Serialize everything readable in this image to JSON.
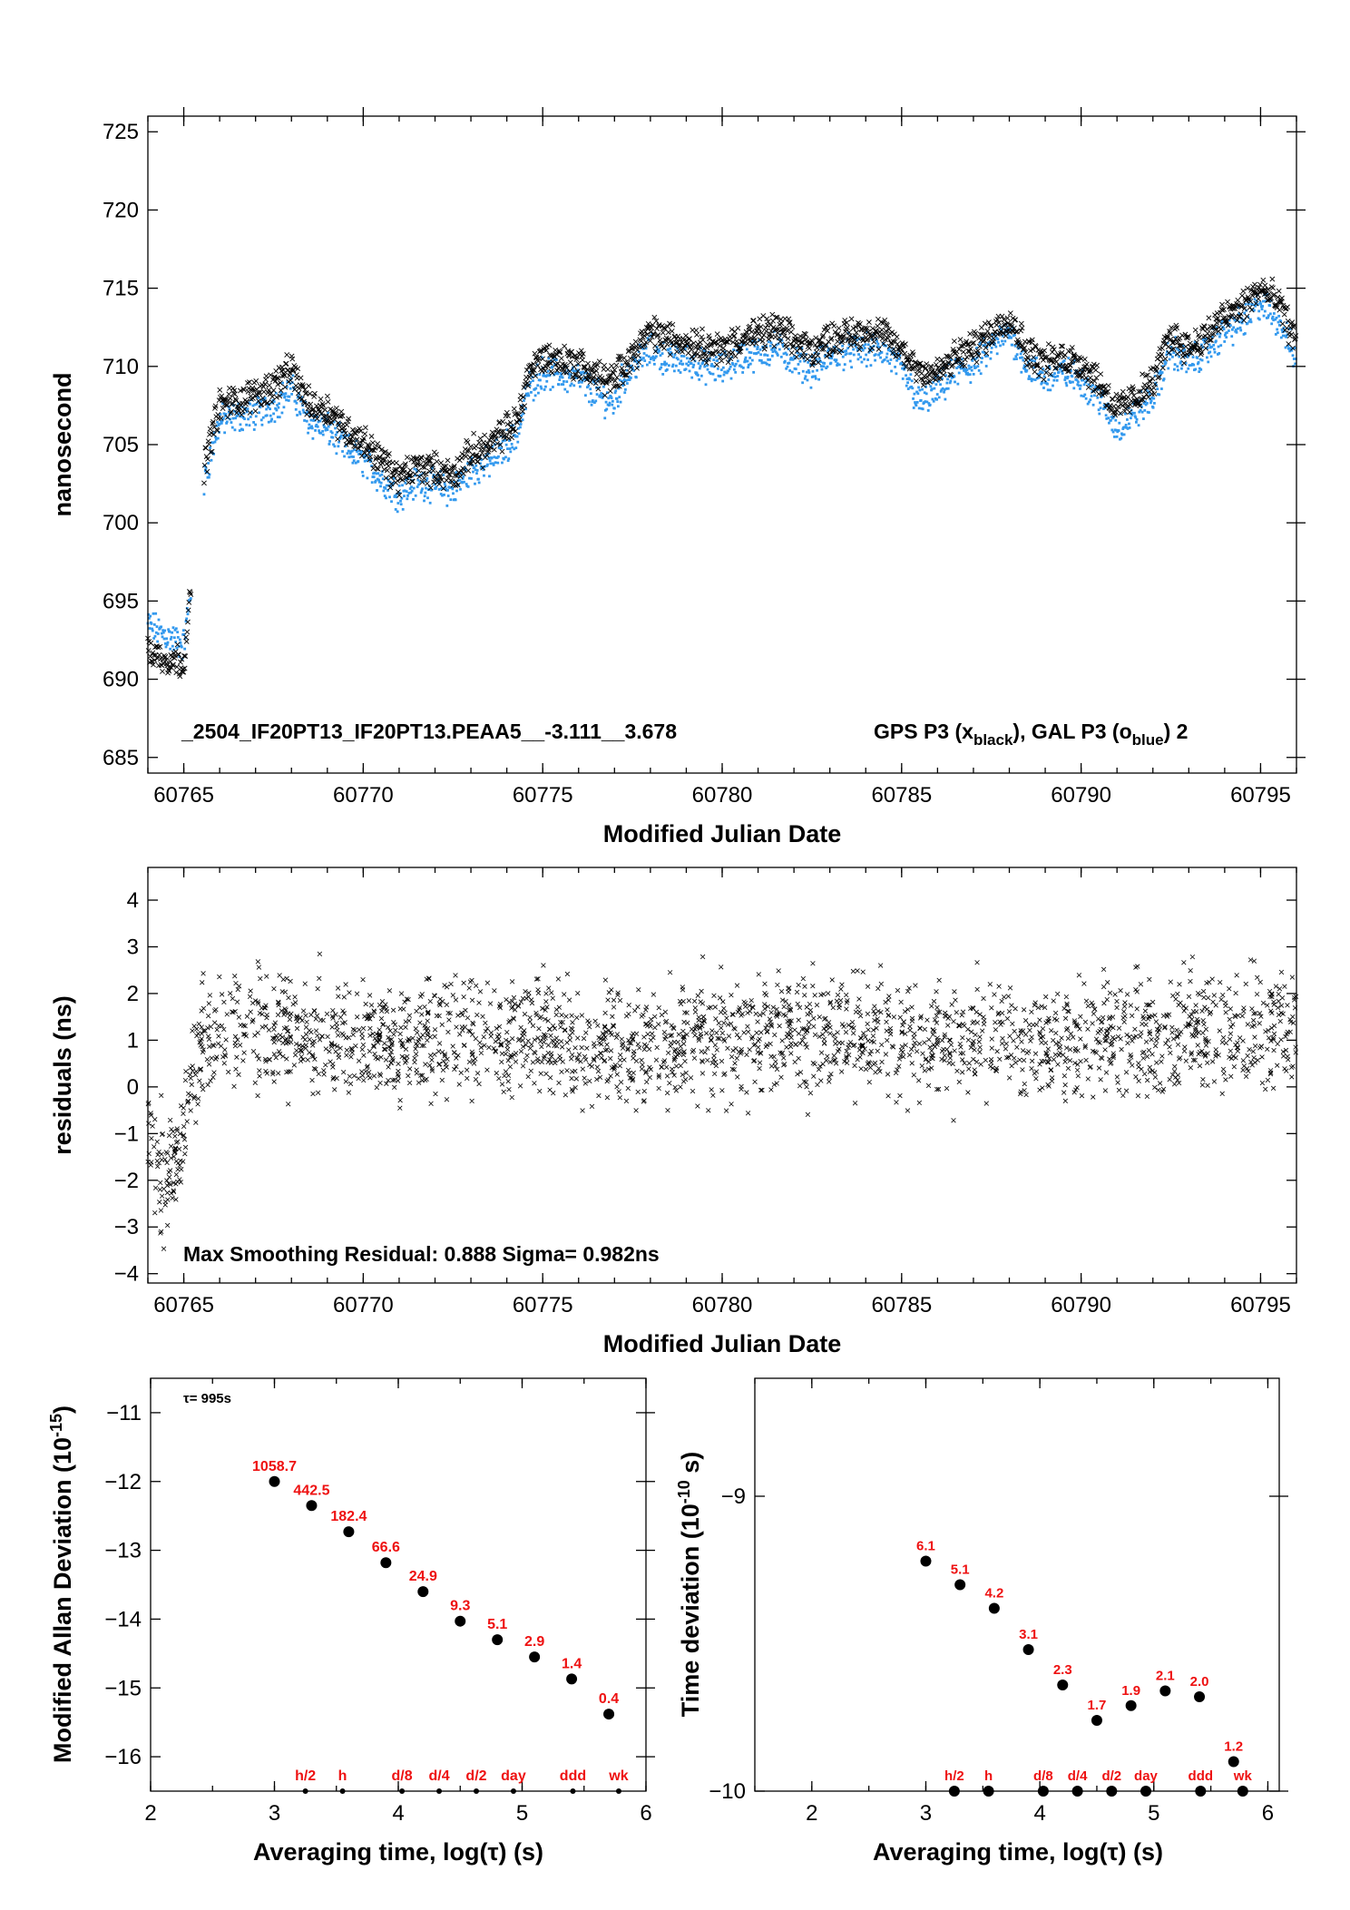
{
  "colors": {
    "series_x": "#000000",
    "series_o": "#3399ee",
    "labels": "#ee1111"
  },
  "chart_data": [
    {
      "id": "timeseries",
      "type": "scatter",
      "ylabel": "nanosecond",
      "xlabel": "Modified Julian Date",
      "xlim": [
        60764.0,
        60796.0
      ],
      "ylim": [
        684.0,
        726.0
      ],
      "xticks": [
        60765,
        60770,
        60775,
        60780,
        60785,
        60790,
        60795
      ],
      "yticks": [
        685,
        690,
        695,
        700,
        705,
        710,
        715,
        720,
        725
      ],
      "annotation_main": "_2504_IF20PT13_IF20PT13.PEAA5__-3.111__3.678",
      "legend": {
        "gps_text": "GPS P3 (x",
        "gps_sub": "black",
        "sep": "),  GAL P3 (o",
        "gal_sub": "blue",
        "tail": ")  2"
      },
      "series": [
        {
          "marker": "x",
          "color": "black",
          "x": [
            60764.0,
            60764.5,
            60765.0,
            60765.6,
            60766.0,
            60766.5,
            60767.0,
            60767.5,
            60768.0,
            60768.5,
            60769.0,
            60769.5,
            60770.0,
            60770.5,
            60771.0,
            60771.5,
            60772.0,
            60772.5,
            60773.0,
            60773.5,
            60774.0,
            60774.3,
            60774.6,
            60775.0,
            60775.5,
            60776.0,
            60776.5,
            60777.0,
            60777.2,
            60777.6,
            60778.0,
            60778.5,
            60779.0,
            60779.5,
            60780.0,
            60780.5,
            60781.0,
            60781.5,
            60782.0,
            60782.5,
            60783.0,
            60783.5,
            60784.0,
            60784.5,
            60785.0,
            60785.5,
            60786.0,
            60786.5,
            60787.0,
            60787.5,
            60788.0,
            60788.5,
            60789.0,
            60789.5,
            60790.0,
            60790.5,
            60791.0,
            60791.5,
            60792.0,
            60792.5,
            60793.0,
            60793.5,
            60794.0,
            60794.5,
            60795.0,
            60795.5,
            60796.0
          ],
          "y": [
            691.8,
            691.3,
            691.2,
            704.0,
            707.5,
            707.8,
            708.2,
            708.8,
            709.8,
            707.5,
            707.3,
            706.0,
            705.2,
            704.0,
            702.8,
            703.6,
            703.4,
            703.0,
            704.5,
            704.8,
            706.0,
            706.5,
            709.6,
            710.6,
            710.4,
            710.2,
            709.4,
            709.0,
            710.0,
            711.0,
            712.2,
            711.8,
            711.6,
            711.4,
            711.0,
            711.8,
            712.0,
            712.4,
            711.6,
            711.0,
            711.8,
            712.0,
            712.2,
            712.0,
            711.0,
            709.8,
            709.5,
            710.6,
            711.2,
            712.2,
            713.2,
            711.0,
            710.2,
            710.6,
            710.2,
            709.0,
            707.2,
            708.0,
            709.0,
            712.0,
            711.2,
            712.0,
            713.2,
            713.8,
            715.0,
            714.0,
            711.5
          ]
        },
        {
          "marker": "o",
          "color": "blue",
          "x": [
            60764.0,
            60764.5,
            60765.0,
            60765.6,
            60766.0,
            60766.5,
            60767.0,
            60767.5,
            60768.0,
            60768.5,
            60769.0,
            60769.5,
            60770.0,
            60770.5,
            60771.0,
            60771.5,
            60772.0,
            60772.5,
            60773.0,
            60773.5,
            60774.0,
            60774.3,
            60774.6,
            60775.0,
            60775.5,
            60776.0,
            60776.5,
            60777.0,
            60777.2,
            60777.6,
            60778.0,
            60778.5,
            60779.0,
            60779.5,
            60780.0,
            60780.5,
            60781.0,
            60781.5,
            60782.0,
            60782.5,
            60783.0,
            60783.5,
            60784.0,
            60784.5,
            60785.0,
            60785.5,
            60786.0,
            60786.5,
            60787.0,
            60787.5,
            60788.0,
            60788.5,
            60789.0,
            60789.5,
            60790.0,
            60790.5,
            60791.0,
            60791.5,
            60792.0,
            60792.5,
            60793.0,
            60793.5,
            60794.0,
            60794.5,
            60795.0,
            60795.5,
            60796.0
          ],
          "y": [
            693.5,
            692.8,
            692.2,
            703.0,
            706.5,
            706.8,
            707.0,
            707.5,
            708.5,
            706.5,
            706.0,
            704.8,
            704.0,
            702.8,
            701.8,
            702.6,
            702.4,
            702.0,
            703.4,
            703.8,
            705.0,
            705.6,
            708.6,
            709.6,
            709.4,
            709.2,
            708.2,
            707.6,
            709.0,
            710.2,
            711.0,
            710.4,
            710.4,
            710.0,
            709.8,
            710.6,
            710.8,
            711.2,
            710.4,
            709.8,
            710.6,
            711.0,
            711.0,
            711.0,
            709.8,
            707.6,
            708.4,
            709.6,
            710.0,
            711.2,
            712.2,
            710.0,
            709.2,
            709.6,
            709.2,
            708.0,
            706.0,
            707.0,
            708.0,
            711.0,
            710.2,
            711.0,
            712.2,
            712.8,
            714.0,
            713.0,
            710.5
          ]
        }
      ]
    },
    {
      "id": "residuals",
      "type": "scatter",
      "ylabel": "residuals (ns)",
      "xlabel": "Modified Julian Date",
      "xlim": [
        60764.0,
        60796.0
      ],
      "ylim": [
        -4.2,
        4.7
      ],
      "xticks": [
        60765,
        60770,
        60775,
        60780,
        60785,
        60790,
        60795
      ],
      "yticks": [
        -4,
        -3,
        -2,
        -1,
        0,
        1,
        2,
        3,
        4
      ],
      "annotation": "Max Smoothing Residual: 0.888  Sigma= 0.982ns",
      "series": [
        {
          "marker": "x",
          "color": "black",
          "x": [
            60764.0,
            60764.5,
            60765.0,
            60765.5,
            60766.0,
            60768.0,
            60770.0,
            60772.0,
            60774.0,
            60776.0,
            60778.0,
            60780.0,
            60782.0,
            60784.0,
            60786.0,
            60788.0,
            60790.0,
            60792.0,
            60794.0,
            60796.0
          ],
          "y": [
            -1.2,
            -2.0,
            -0.8,
            0.8,
            1.2,
            1.1,
            1.0,
            1.0,
            1.1,
            0.9,
            1.0,
            1.0,
            1.1,
            1.2,
            1.0,
            1.1,
            1.0,
            1.1,
            1.2,
            1.3
          ],
          "spread": 0.95
        }
      ]
    },
    {
      "id": "mdev",
      "type": "scatter",
      "ylabel": "Modified Allan Deviation (10",
      "ylabel_sup": "-15",
      "ylabel_end": ")",
      "xlabel": "Averaging time, log(τ) (s)",
      "xlim": [
        2,
        6
      ],
      "ylim": [
        -16.5,
        -10.5
      ],
      "xticks": [
        2,
        3,
        4,
        5,
        6
      ],
      "yticks": [
        -16,
        -15,
        -14,
        -13,
        -12,
        -11
      ],
      "tau_note": "τ= 995s",
      "x": [
        3.0,
        3.3,
        3.6,
        3.9,
        4.2,
        4.5,
        4.8,
        5.1,
        5.4,
        5.7
      ],
      "y": [
        -12.0,
        -12.35,
        -12.73,
        -13.18,
        -13.6,
        -14.03,
        -14.3,
        -14.55,
        -14.87,
        -15.38
      ],
      "point_labels": [
        "1058.7",
        "442.5",
        "182.4",
        "66.6",
        "24.9",
        "9.3",
        "5.1",
        "2.9",
        "1.4",
        "0.4"
      ],
      "marker_x": [
        3.25,
        3.55,
        4.03,
        4.33,
        4.63,
        4.93,
        5.41,
        5.78
      ],
      "marker_labels": [
        "h/2",
        "h",
        "d/8",
        "d/4",
        "d/2",
        "day",
        "ddd",
        "wk"
      ]
    },
    {
      "id": "tdev",
      "type": "scatter",
      "ylabel": "Time deviation (10",
      "ylabel_sup": "-10",
      "ylabel_end": " s)",
      "xlabel": "Averaging time, log(τ) (s)",
      "xlim": [
        1.5,
        6.1
      ],
      "ylim": [
        -10.0,
        -8.6
      ],
      "xticks": [
        2,
        3,
        4,
        5,
        6
      ],
      "yticks": [
        -10,
        -9
      ],
      "x": [
        3.0,
        3.3,
        3.6,
        3.9,
        4.2,
        4.5,
        4.8,
        5.1,
        5.4,
        5.7
      ],
      "y": [
        -9.22,
        -9.3,
        -9.38,
        -9.52,
        -9.64,
        -9.76,
        -9.71,
        -9.66,
        -9.68,
        -9.9
      ],
      "point_labels": [
        "6.1",
        "5.1",
        "4.2",
        "3.1",
        "2.3",
        "1.7",
        "1.9",
        "2.1",
        "2.0",
        "1.2"
      ],
      "marker_x": [
        3.25,
        3.55,
        4.03,
        4.33,
        4.63,
        4.93,
        5.41,
        5.78
      ],
      "marker_labels": [
        "h/2",
        "h",
        "d/8",
        "d/4",
        "d/2",
        "day",
        "ddd",
        "wk"
      ]
    }
  ]
}
